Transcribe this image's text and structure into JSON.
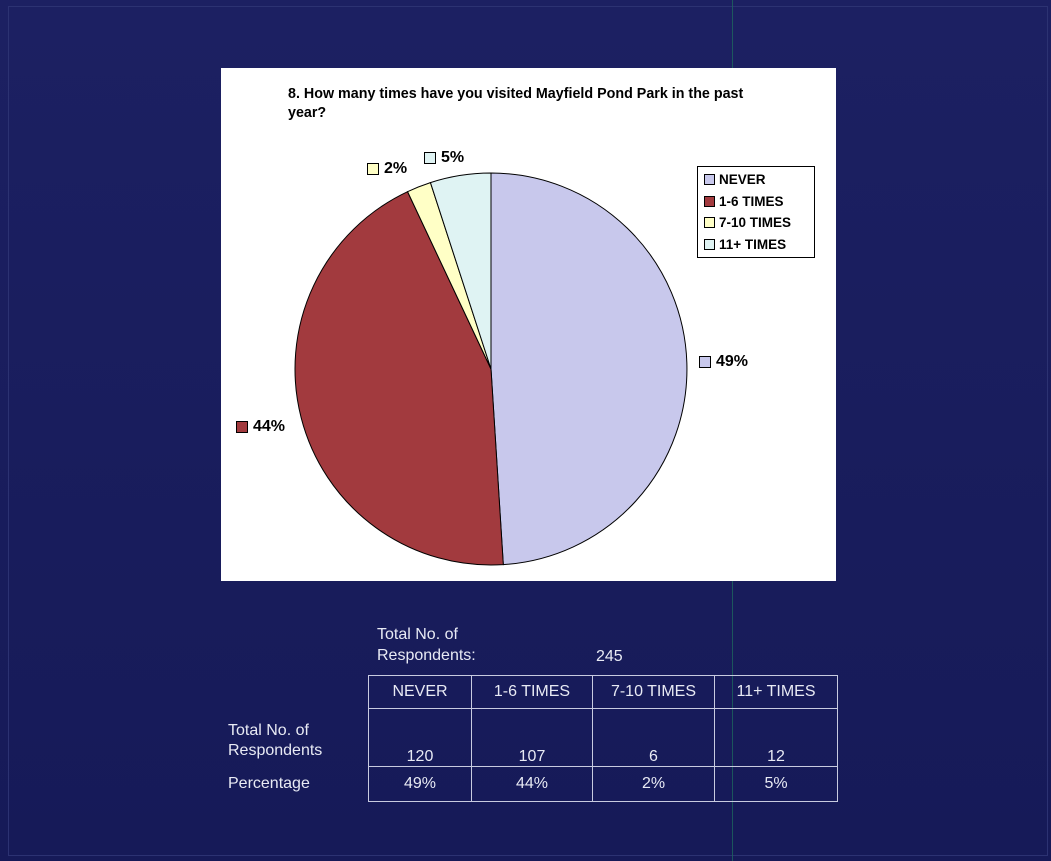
{
  "chart_data": {
    "type": "pie",
    "title": "8. How many times have you visited Mayfield Pond Park in the past year?",
    "categories": [
      "NEVER",
      "1-6 TIMES",
      "7-10 TIMES",
      "11+ TIMES"
    ],
    "values": [
      49,
      44,
      2,
      5
    ],
    "value_labels": [
      "49%",
      "44%",
      "2%",
      "5%"
    ],
    "colors": [
      "#c8c8ec",
      "#a23a3e",
      "#ffffc6",
      "#dff3f3"
    ],
    "legend": {
      "position": "right",
      "entries": [
        "NEVER",
        "1-6 TIMES",
        "7-10 TIMES",
        "11+ TIMES"
      ]
    }
  },
  "summary": {
    "total_label": "Total No. of Respondents:",
    "total_value": "245",
    "columns": [
      "NEVER",
      "1-6 TIMES",
      "7-10 TIMES",
      "11+ TIMES"
    ],
    "rows": [
      {
        "label": "Total No. of Respondents",
        "values": [
          "120",
          "107",
          "6",
          "12"
        ]
      },
      {
        "label": "Percentage",
        "values": [
          "49%",
          "44%",
          "2%",
          "5%"
        ]
      }
    ]
  }
}
